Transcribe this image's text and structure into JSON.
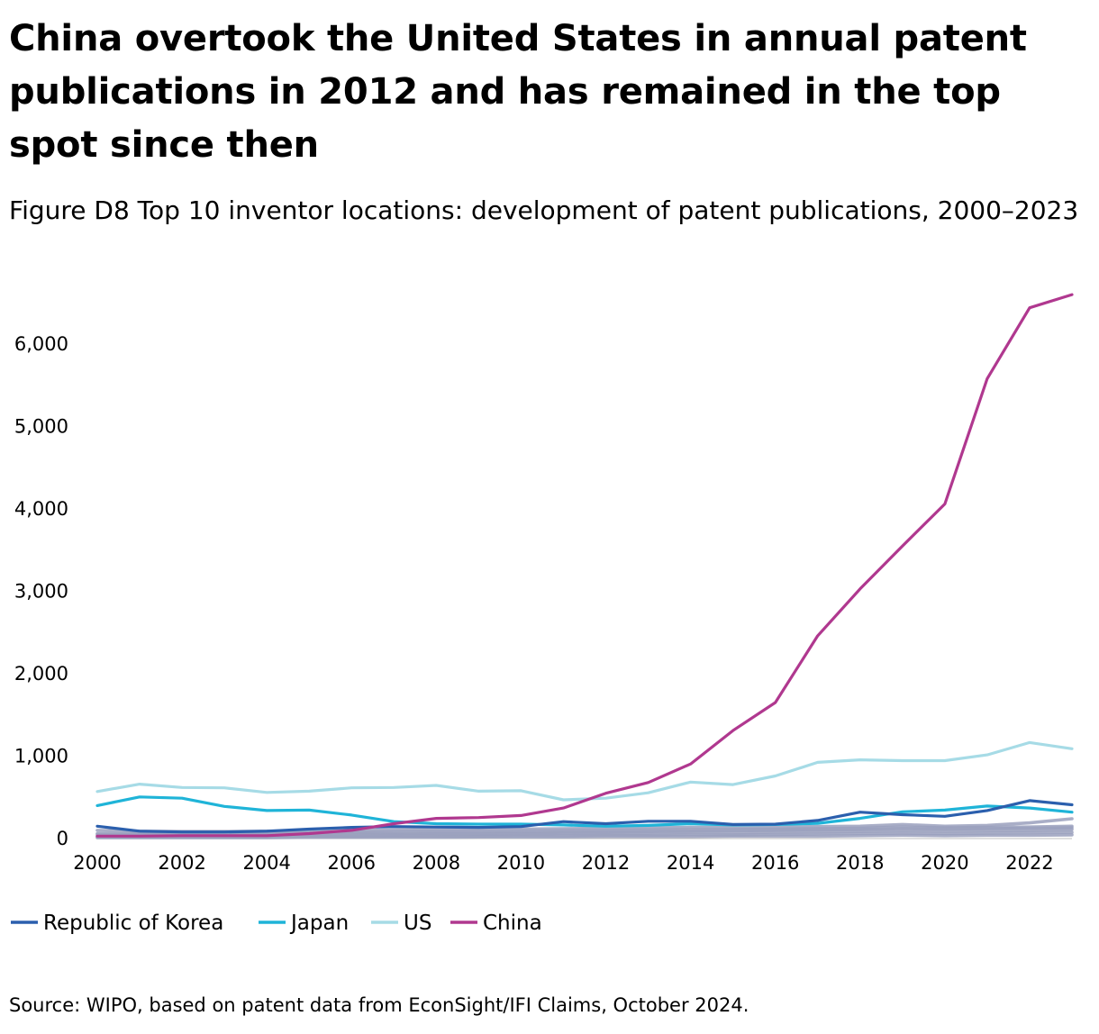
{
  "header": {
    "title": "China overtook the United States in annual patent publications in 2012 and has remained in the top spot since then",
    "subtitle": "Figure D8 Top 10 inventor locations: development of patent publications, 2000–2023"
  },
  "footer": {
    "source": "Source: WIPO, based on patent data from EconSight/IFI Claims, October 2024."
  },
  "chart_data": {
    "type": "line",
    "title": "China overtook the United States in annual patent publications in 2012 and has remained in the top spot since then",
    "subtitle": "Figure D8 Top 10 inventor locations: development of patent publications, 2000–2023",
    "xlabel": "",
    "ylabel": "",
    "x": [
      2000,
      2001,
      2002,
      2003,
      2004,
      2005,
      2006,
      2007,
      2008,
      2009,
      2010,
      2011,
      2012,
      2013,
      2014,
      2015,
      2016,
      2017,
      2018,
      2019,
      2020,
      2021,
      2022,
      2023
    ],
    "xlim": [
      2000,
      2023
    ],
    "ylim": [
      0,
      6600
    ],
    "x_ticks": [
      "2000",
      "2002",
      "2004",
      "2006",
      "2008",
      "2010",
      "2012",
      "2014",
      "2016",
      "2018",
      "2020",
      "2022"
    ],
    "y_ticks": [
      {
        "value": 0,
        "label": "0"
      },
      {
        "value": 1000,
        "label": "1,000"
      },
      {
        "value": 2000,
        "label": "2,000"
      },
      {
        "value": 3000,
        "label": "3,000"
      },
      {
        "value": 4000,
        "label": "4,000"
      },
      {
        "value": 5000,
        "label": "5,000"
      },
      {
        "value": 6000,
        "label": "6,000"
      }
    ],
    "grid": false,
    "legend_position": "bottom-left",
    "series": [
      {
        "name": "Other location 1",
        "color": "#9aa0bd",
        "in_legend": false,
        "values": [
          100,
          90,
          85,
          85,
          90,
          95,
          100,
          105,
          110,
          110,
          115,
          120,
          125,
          130,
          135,
          135,
          140,
          145,
          150,
          170,
          150,
          160,
          190,
          240
        ]
      },
      {
        "name": "Other location 2",
        "color": "#9aa0bd",
        "in_legend": false,
        "values": [
          60,
          60,
          60,
          60,
          65,
          70,
          75,
          80,
          85,
          85,
          90,
          95,
          100,
          105,
          110,
          110,
          115,
          120,
          125,
          140,
          130,
          135,
          140,
          150
        ]
      },
      {
        "name": "Other location 3",
        "color": "#9aa0bd",
        "in_legend": false,
        "values": [
          50,
          50,
          50,
          50,
          55,
          55,
          60,
          60,
          65,
          65,
          70,
          75,
          80,
          85,
          90,
          95,
          100,
          105,
          110,
          120,
          115,
          120,
          125,
          130
        ]
      },
      {
        "name": "Other location 4",
        "color": "#9aa0bd",
        "in_legend": false,
        "values": [
          30,
          30,
          30,
          35,
          35,
          40,
          40,
          45,
          50,
          50,
          55,
          60,
          60,
          65,
          70,
          70,
          75,
          80,
          85,
          95,
          90,
          95,
          100,
          110
        ]
      },
      {
        "name": "Other location 5",
        "color": "#9aa0bd",
        "in_legend": false,
        "values": [
          20,
          20,
          20,
          20,
          25,
          25,
          25,
          30,
          30,
          30,
          35,
          35,
          40,
          40,
          45,
          45,
          50,
          55,
          60,
          65,
          60,
          65,
          70,
          75
        ]
      },
      {
        "name": "Other location 6",
        "color": "#9aa0bd",
        "in_legend": false,
        "values": [
          10,
          10,
          10,
          10,
          10,
          15,
          15,
          15,
          15,
          20,
          20,
          20,
          25,
          25,
          25,
          30,
          30,
          30,
          35,
          40,
          35,
          40,
          40,
          45
        ]
      },
      {
        "name": "US",
        "color": "#a6dbe6",
        "in_legend": true,
        "values": [
          570,
          660,
          620,
          615,
          560,
          575,
          615,
          620,
          645,
          575,
          580,
          470,
          490,
          555,
          685,
          655,
          760,
          925,
          955,
          945,
          945,
          1015,
          1165,
          1090
        ]
      },
      {
        "name": "Japan",
        "color": "#1fb4d8",
        "in_legend": true,
        "values": [
          400,
          505,
          490,
          390,
          340,
          345,
          285,
          205,
          180,
          175,
          175,
          165,
          150,
          160,
          180,
          165,
          170,
          185,
          245,
          325,
          345,
          395,
          370,
          320
        ]
      },
      {
        "name": "Republic of Korea",
        "color": "#2b5fad",
        "in_legend": true,
        "values": [
          150,
          90,
          80,
          80,
          90,
          115,
          135,
          145,
          140,
          135,
          145,
          205,
          180,
          210,
          210,
          170,
          175,
          220,
          320,
          290,
          270,
          340,
          460,
          410
        ]
      },
      {
        "name": "China",
        "color": "#b0388f",
        "in_legend": true,
        "values": [
          30,
          30,
          35,
          35,
          35,
          60,
          100,
          180,
          245,
          255,
          280,
          370,
          550,
          680,
          905,
          1310,
          1650,
          2460,
          3030,
          3550,
          4060,
          5580,
          6440,
          6600
        ]
      }
    ]
  }
}
